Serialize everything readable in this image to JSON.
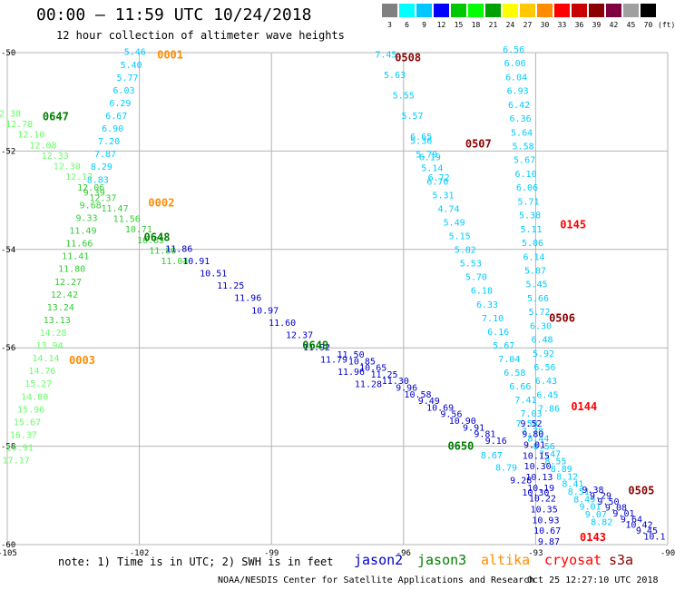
{
  "header": {
    "title": "00:00 – 11:59 UTC 10/24/2018",
    "subtitle": "12 hour collection of altimeter wave heights"
  },
  "colorbar": {
    "labels": [
      "3",
      "6",
      "9",
      "12",
      "15",
      "18",
      "21",
      "24",
      "27",
      "30",
      "33",
      "36",
      "39",
      "42",
      "45",
      "70",
      "(ft)"
    ],
    "colors": [
      "#808080",
      "#00ffff",
      "#00c8ff",
      "#0000ff",
      "#00c800",
      "#00ff00",
      "#00a000",
      "#ffff00",
      "#ffc800",
      "#ff8c00",
      "#ff0000",
      "#c80000",
      "#8b0000",
      "#800040",
      "#a0a0a0",
      "#000000"
    ]
  },
  "chart_data": {
    "type": "scatter",
    "xlim": [
      -105,
      -90
    ],
    "ylim": [
      -60,
      -50
    ],
    "x_ticks": [
      "-105",
      "-102",
      "-99",
      "-96",
      "-93",
      "-90"
    ],
    "y_ticks": [
      "-50",
      "-52",
      "-54",
      "-56",
      "-58",
      "-60"
    ],
    "grid": true,
    "series": [
      {
        "name": "jason2",
        "color": "#0000cc"
      },
      {
        "name": "jason3",
        "color": "#007f00"
      },
      {
        "name": "altika",
        "color": "#ff8c00"
      },
      {
        "name": "cryosat",
        "color": "#ff0000"
      },
      {
        "name": "s3a",
        "color": "#8b0000"
      }
    ],
    "tracks": [
      {
        "label": "0001",
        "label_color": "#ff8c00",
        "label_lon": -101.3,
        "label_lat": -50.05,
        "start": [
          -102.1,
          -50.05
        ],
        "end": [
          -104.8,
          -58.35
        ],
        "color_shift_at": 22,
        "colors": [
          "#00ccff",
          "#33cc33",
          "#66ff66"
        ],
        "values": [
          "5.46",
          "5.40",
          "5.77",
          "6.03",
          "6.29",
          "6.67",
          "6.90",
          "7.20",
          "7.87",
          "8.29",
          "8.83",
          "9.39",
          "9.68",
          "9.33",
          "11.49",
          "11.66",
          "11.41",
          "11.80",
          "12.27",
          "12.42",
          "13.24",
          "13.13",
          "14.28",
          "13.94",
          "14.14",
          "14.76",
          "15.27",
          "14.80",
          "15.96",
          "15.67",
          "16.37",
          "16.91",
          "17.17"
        ]
      },
      {
        "label": "0002",
        "label_color": "#ff8c00",
        "label_lon": -101.5,
        "label_lat": -53.05,
        "label_extra": [
          {
            "text": "0003",
            "color": "#ff8c00",
            "lon": -103.3,
            "lat": -56.25
          }
        ]
      },
      {
        "label": "0647",
        "label_color": "#007f00",
        "label_lon": -103.9,
        "label_lat": -51.3,
        "start": [
          -105.0,
          -51.3
        ],
        "end": [
          -101.2,
          -54.3
        ],
        "colors": [
          "#66ff66",
          "#33cc33"
        ],
        "values": [
          "12.38",
          "12.78",
          "12.10",
          "12.08",
          "12.33",
          "12.30",
          "12.17",
          "12.06",
          "12.37",
          "11.47",
          "11.56",
          "10.71",
          "10.85",
          "11.80",
          "11.04"
        ]
      },
      {
        "label": "0648",
        "label_color": "#007f00",
        "label_lon": -101.6,
        "label_lat": -53.75,
        "start": [
          -101.1,
          -54.05
        ],
        "end": [
          -96.8,
          -56.8
        ],
        "colors": [
          "#0000cc"
        ],
        "values": [
          "11.86",
          "10.91",
          "10.51",
          "11.25",
          "11.96",
          "10.97",
          "11.60",
          "12.37",
          "11.92",
          "11.79",
          "11.96",
          "11.28"
        ]
      },
      {
        "label": "0649",
        "label_color": "#007f00",
        "label_lon": -98.0,
        "label_lat": -55.95,
        "start": [
          -97.2,
          -56.2
        ],
        "end": [
          -93.9,
          -57.95
        ],
        "colors": [
          "#0000cc"
        ],
        "values": [
          "11.50",
          "10.85",
          "10.65",
          "11.25",
          "11.30",
          "9.96",
          "10.58",
          "9.49",
          "10.69",
          "9.56",
          "10.90",
          "9.91",
          "9.81",
          "9.16"
        ]
      },
      {
        "label": "0650",
        "label_color": "#007f00",
        "label_lon": -94.7,
        "label_lat": -58.0,
        "start": [
          -94.0,
          -58.25
        ],
        "end": [
          -93.0,
          -59.0
        ],
        "colors": [
          "#00ccff",
          "#0000cc"
        ],
        "values": [
          "8.67",
          "8.79",
          "9.28",
          "10.30"
        ]
      },
      {
        "label": "0508",
        "label_color": "#8b0000",
        "label_lon": -95.9,
        "label_lat": -50.1,
        "start": [
          -96.4,
          -50.1
        ],
        "end": [
          -95.2,
          -52.6
        ],
        "colors": [
          "#00ccff"
        ],
        "values": [
          "7.45",
          "5.63",
          "5.55",
          "5.57",
          "6.65",
          "6.19",
          "6.72"
        ]
      },
      {
        "label": "0507",
        "label_color": "#8b0000",
        "label_lon": -94.3,
        "label_lat": -51.85,
        "start": [
          -95.6,
          -51.85
        ],
        "end": [
          -93.1,
          -57.4
        ],
        "colors": [
          "#00ccff"
        ],
        "values": [
          "5.36",
          "5.79",
          "5.14",
          "6.70",
          "5.31",
          "4.74",
          "5.49",
          "5.15",
          "5.82",
          "5.53",
          "5.70",
          "6.18",
          "6.33",
          "7.10",
          "6.16",
          "5.67",
          "7.04",
          "6.58",
          "6.66",
          "7.41",
          "7.03"
        ]
      },
      {
        "label": "0145",
        "label_color": "#ff0000",
        "label_lon": -92.15,
        "label_lat": -53.5,
        "start": [
          -93.5,
          -50.0
        ],
        "end": [
          -92.7,
          -57.3
        ],
        "colors": [
          "#00ccff"
        ],
        "values": [
          "6.56",
          "6.06",
          "6.04",
          "6.93",
          "6.42",
          "6.36",
          "5.64",
          "5.58",
          "5.67",
          "6.10",
          "6.06",
          "5.71",
          "5.38",
          "5.11",
          "5.06",
          "6.14",
          "5.87",
          "5.45",
          "5.66",
          "5.72",
          "6.30",
          "6.48",
          "5.92",
          "6.56",
          "6.43",
          "6.45",
          "7.86"
        ]
      },
      {
        "label": "0506",
        "label_color": "#8b0000",
        "label_lon": -92.4,
        "label_lat": -55.4,
        "start": [
          -93.2,
          -57.6
        ],
        "end": [
          -91.5,
          -59.6
        ],
        "colors": [
          "#00ccff"
        ],
        "values": [
          "7.58",
          "7.78",
          "8.44",
          "8.56",
          "7.47",
          "8.55",
          "8.89",
          "8.12",
          "8.41",
          "8.51",
          "8.49",
          "9.01",
          "9.07",
          "8.82"
        ]
      },
      {
        "label": "0144",
        "label_color": "#ff0000",
        "label_lon": -91.9,
        "label_lat": -57.2,
        "start": [
          -93.1,
          -57.6
        ],
        "end": [
          -92.7,
          -60.0
        ],
        "colors": [
          "#0000cc"
        ],
        "values": [
          "9.52",
          "9.80",
          "9.01",
          "10.15",
          "10.30",
          "10.13",
          "10.19",
          "10.22",
          "10.35",
          "10.93",
          "10.67",
          "9.87"
        ]
      },
      {
        "label": "0505",
        "label_color": "#8b0000",
        "label_lon": -90.6,
        "label_lat": -58.9,
        "start": [
          -91.7,
          -58.95
        ],
        "end": [
          -90.3,
          -59.9
        ],
        "colors": [
          "#0000cc"
        ],
        "values": [
          "9.38",
          "9.29",
          "9.50",
          "9.08",
          "9.01",
          "9.64",
          "10.42",
          "9.45",
          "10.1"
        ]
      },
      {
        "label": "0143",
        "label_color": "#ff0000",
        "label_lon": -91.7,
        "label_lat": -59.85
      }
    ]
  },
  "footer": {
    "note": "note: 1) Time is in UTC; 2) SWH is in feet",
    "satellites": [
      {
        "name": "jason2",
        "color": "#0000cc"
      },
      {
        "name": "jason3",
        "color": "#007f00"
      },
      {
        "name": "altika",
        "color": "#ff8c00"
      },
      {
        "name": "cryosat",
        "color": "#ff0000"
      },
      {
        "name": "s3a",
        "color": "#8b0000"
      }
    ],
    "center": "NOAA/NESDIS Center for Satellite Applications and Research",
    "timestamp": "Oct 25 12:27:10 UTC 2018"
  }
}
